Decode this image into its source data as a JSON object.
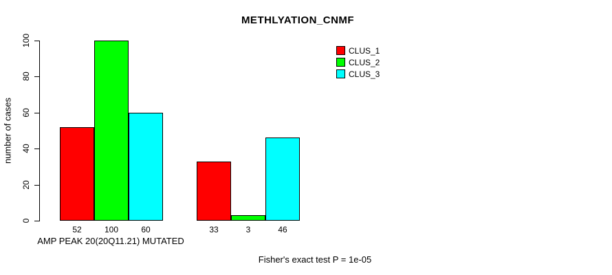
{
  "chart_data": {
    "type": "bar",
    "title": "METHLYATION_CNMF",
    "xlabel": "AMP PEAK 20(20Q11.21) MUTATED",
    "ylabel": "number of cases",
    "ylim": [
      0,
      100
    ],
    "yticks": [
      0,
      20,
      40,
      60,
      80,
      100
    ],
    "grid": false,
    "legend_position": "top-right",
    "groups": 2,
    "series": [
      {
        "name": "CLUS_1",
        "color": "#ff0000",
        "values": [
          52,
          33
        ]
      },
      {
        "name": "CLUS_2",
        "color": "#00ff00",
        "values": [
          100,
          3
        ]
      },
      {
        "name": "CLUS_3",
        "color": "#00ffff",
        "values": [
          60,
          46
        ]
      }
    ],
    "bar_value_labels": [
      [
        "52",
        "100",
        "60"
      ],
      [
        "33",
        "3",
        "46"
      ]
    ],
    "annotation": "Fisher's exact test P = 1e-05"
  }
}
